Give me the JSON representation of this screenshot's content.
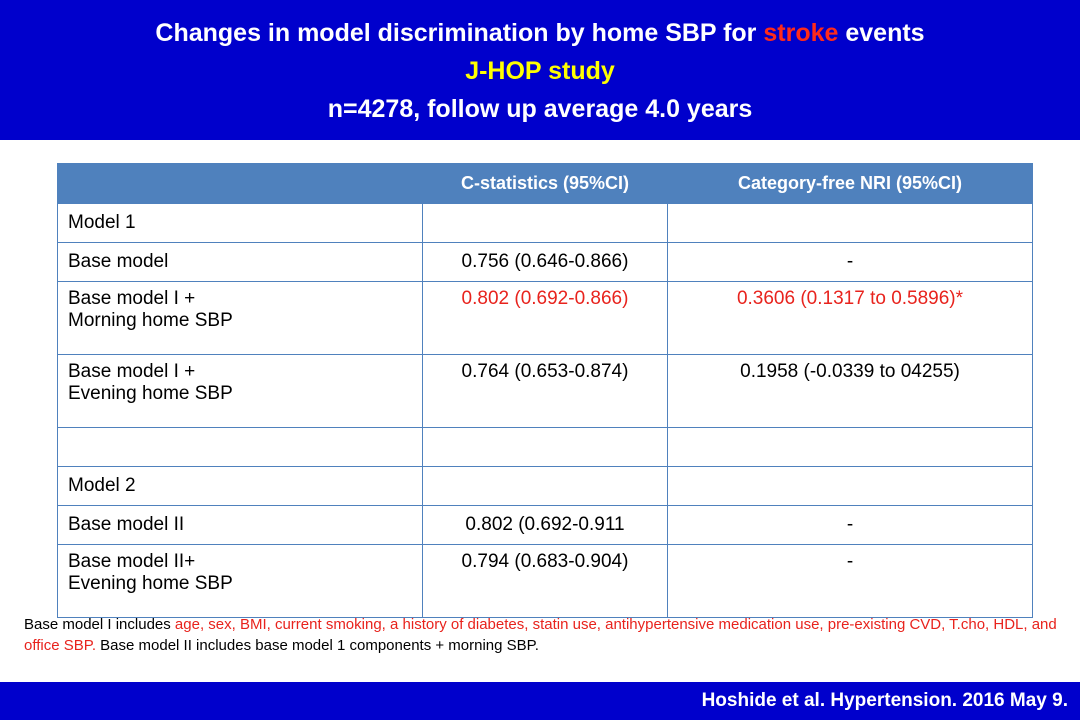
{
  "header": {
    "title_prefix": "Changes in model discrimination by home SBP for",
    "title_highlight": "stroke",
    "title_suffix": "events",
    "study": "J-HOP study",
    "cohort": "n=4278, follow up average 4.0 years"
  },
  "table": {
    "columns": [
      "",
      "C-statistics (95%CI)",
      "Category-free NRI (95%CI)"
    ],
    "rows": [
      {
        "label": "Model 1",
        "cstat": "",
        "nri": ""
      },
      {
        "label": "Base model",
        "cstat": "0.756 (0.646-0.866)",
        "nri": "-"
      },
      {
        "label_line1": "Base model I +",
        "label_line2": "Morning home SBP",
        "cstat": "0.802 (0.692-0.866)",
        "nri": "0.3606 (0.1317 to 0.5896)*"
      },
      {
        "label_line1": "Base model I +",
        "label_line2": "Evening home SBP",
        "cstat": "0.764 (0.653-0.874)",
        "nri": "0.1958 (-0.0339 to 04255)"
      },
      {
        "label": "",
        "cstat": "",
        "nri": ""
      },
      {
        "label": "Model 2",
        "cstat": "",
        "nri": ""
      },
      {
        "label": "Base model II",
        "cstat": "0.802 (0.692-0.911",
        "nri": "-"
      },
      {
        "label_line1": "Base model II+",
        "label_line2": "Evening home SBP",
        "cstat": "0.794 (0.683-0.904)",
        "nri": "-"
      }
    ]
  },
  "footnote": {
    "intro": "Base model I includes",
    "covariates": "age, sex, BMI, current smoking, a history of diabetes, statin use, antihypertensive medication use, pre-existing CVD, T.cho, HDL, and office SBP.",
    "rest": "Base model II includes base model 1 components + morning SBP."
  },
  "footer": {
    "citation": "Hoshide et al. Hypertension. 2016 May 9."
  },
  "colors": {
    "header_bg": "#0000cc",
    "table_header_bg": "#4f81bd",
    "highlight_red": "#e8231d",
    "highlight_yellow": "#ffff00"
  }
}
